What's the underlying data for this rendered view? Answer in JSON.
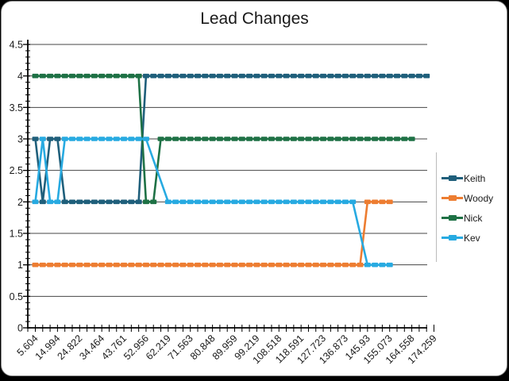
{
  "chart_data": {
    "type": "line",
    "title": "Lead Changes",
    "x_axis": {
      "tick_labels": [
        "5.604",
        "14.994",
        "24.822",
        "34.464",
        "43.761",
        "52.956",
        "62.219",
        "71.563",
        "80.848",
        "89.959",
        "99.219",
        "108.518",
        "118.591",
        "127.723",
        "136.873",
        "145.93",
        "155.073",
        "164.558",
        "174.259"
      ],
      "label_every_n_categories": 3,
      "category_count": 55
    },
    "y_axis": {
      "min": 0,
      "max": 4.5,
      "major_step": 0.5,
      "minor_step": 0.1
    },
    "legend": {
      "position": "right",
      "entries": [
        "Keith",
        "Woody",
        "Nick",
        "Kev"
      ]
    },
    "series": [
      {
        "name": "Keith",
        "color": "#1F5F7B",
        "points": [
          [
            0,
            3
          ],
          [
            1,
            2
          ],
          [
            2,
            3
          ],
          [
            3,
            3
          ],
          [
            4,
            2
          ],
          [
            5,
            2
          ],
          [
            6,
            2
          ],
          [
            7,
            2
          ],
          [
            8,
            2
          ],
          [
            9,
            2
          ],
          [
            10,
            2
          ],
          [
            11,
            2
          ],
          [
            12,
            2
          ],
          [
            13,
            2
          ],
          [
            14,
            2
          ],
          [
            15,
            4
          ],
          [
            16,
            4
          ],
          [
            17,
            4
          ],
          [
            18,
            4
          ],
          [
            19,
            4
          ],
          [
            20,
            4
          ],
          [
            21,
            4
          ],
          [
            22,
            4
          ],
          [
            23,
            4
          ],
          [
            24,
            4
          ],
          [
            25,
            4
          ],
          [
            26,
            4
          ],
          [
            27,
            4
          ],
          [
            28,
            4
          ],
          [
            29,
            4
          ],
          [
            30,
            4
          ],
          [
            31,
            4
          ],
          [
            32,
            4
          ],
          [
            33,
            4
          ],
          [
            34,
            4
          ],
          [
            35,
            4
          ],
          [
            36,
            4
          ],
          [
            37,
            4
          ],
          [
            38,
            4
          ],
          [
            39,
            4
          ],
          [
            40,
            4
          ],
          [
            41,
            4
          ],
          [
            42,
            4
          ],
          [
            43,
            4
          ],
          [
            44,
            4
          ],
          [
            45,
            4
          ],
          [
            46,
            4
          ],
          [
            47,
            4
          ],
          [
            48,
            4
          ],
          [
            49,
            4
          ],
          [
            50,
            4
          ],
          [
            51,
            4
          ],
          [
            52,
            4
          ],
          [
            53,
            4
          ]
        ]
      },
      {
        "name": "Woody",
        "color": "#ED7D31",
        "points": [
          [
            0,
            1
          ],
          [
            1,
            1
          ],
          [
            2,
            1
          ],
          [
            3,
            1
          ],
          [
            4,
            1
          ],
          [
            5,
            1
          ],
          [
            6,
            1
          ],
          [
            7,
            1
          ],
          [
            8,
            1
          ],
          [
            9,
            1
          ],
          [
            10,
            1
          ],
          [
            11,
            1
          ],
          [
            12,
            1
          ],
          [
            13,
            1
          ],
          [
            14,
            1
          ],
          [
            15,
            1
          ],
          [
            16,
            1
          ],
          [
            17,
            1
          ],
          [
            18,
            1
          ],
          [
            19,
            1
          ],
          [
            20,
            1
          ],
          [
            21,
            1
          ],
          [
            22,
            1
          ],
          [
            23,
            1
          ],
          [
            24,
            1
          ],
          [
            25,
            1
          ],
          [
            26,
            1
          ],
          [
            27,
            1
          ],
          [
            28,
            1
          ],
          [
            29,
            1
          ],
          [
            30,
            1
          ],
          [
            31,
            1
          ],
          [
            32,
            1
          ],
          [
            33,
            1
          ],
          [
            34,
            1
          ],
          [
            35,
            1
          ],
          [
            36,
            1
          ],
          [
            37,
            1
          ],
          [
            38,
            1
          ],
          [
            39,
            1
          ],
          [
            40,
            1
          ],
          [
            41,
            1
          ],
          [
            42,
            1
          ],
          [
            43,
            1
          ],
          [
            44,
            1
          ],
          [
            45,
            2
          ],
          [
            46,
            2
          ],
          [
            47,
            2
          ],
          [
            48,
            2
          ]
        ]
      },
      {
        "name": "Nick",
        "color": "#1E7145",
        "points": [
          [
            0,
            4
          ],
          [
            1,
            4
          ],
          [
            2,
            4
          ],
          [
            3,
            4
          ],
          [
            4,
            4
          ],
          [
            5,
            4
          ],
          [
            6,
            4
          ],
          [
            7,
            4
          ],
          [
            8,
            4
          ],
          [
            9,
            4
          ],
          [
            10,
            4
          ],
          [
            11,
            4
          ],
          [
            12,
            4
          ],
          [
            13,
            4
          ],
          [
            14,
            4
          ],
          [
            15,
            2
          ],
          [
            16,
            2
          ],
          [
            17,
            3
          ],
          [
            18,
            3
          ],
          [
            19,
            3
          ],
          [
            20,
            3
          ],
          [
            21,
            3
          ],
          [
            22,
            3
          ],
          [
            23,
            3
          ],
          [
            24,
            3
          ],
          [
            25,
            3
          ],
          [
            26,
            3
          ],
          [
            27,
            3
          ],
          [
            28,
            3
          ],
          [
            29,
            3
          ],
          [
            30,
            3
          ],
          [
            31,
            3
          ],
          [
            32,
            3
          ],
          [
            33,
            3
          ],
          [
            34,
            3
          ],
          [
            35,
            3
          ],
          [
            36,
            3
          ],
          [
            37,
            3
          ],
          [
            38,
            3
          ],
          [
            39,
            3
          ],
          [
            40,
            3
          ],
          [
            41,
            3
          ],
          [
            42,
            3
          ],
          [
            43,
            3
          ],
          [
            44,
            3
          ],
          [
            45,
            3
          ],
          [
            46,
            3
          ],
          [
            47,
            3
          ],
          [
            48,
            3
          ],
          [
            49,
            3
          ],
          [
            50,
            3
          ],
          [
            51,
            3
          ]
        ]
      },
      {
        "name": "Kev",
        "color": "#27AAE1",
        "points": [
          [
            0,
            2
          ],
          [
            1,
            3
          ],
          [
            2,
            2
          ],
          [
            3,
            2
          ],
          [
            4,
            3
          ],
          [
            5,
            3
          ],
          [
            6,
            3
          ],
          [
            7,
            3
          ],
          [
            8,
            3
          ],
          [
            9,
            3
          ],
          [
            10,
            3
          ],
          [
            11,
            3
          ],
          [
            12,
            3
          ],
          [
            13,
            3
          ],
          [
            14,
            3
          ],
          [
            15,
            3
          ],
          [
            18,
            2
          ],
          [
            19,
            2
          ],
          [
            20,
            2
          ],
          [
            21,
            2
          ],
          [
            22,
            2
          ],
          [
            23,
            2
          ],
          [
            24,
            2
          ],
          [
            25,
            2
          ],
          [
            26,
            2
          ],
          [
            27,
            2
          ],
          [
            28,
            2
          ],
          [
            29,
            2
          ],
          [
            30,
            2
          ],
          [
            31,
            2
          ],
          [
            32,
            2
          ],
          [
            33,
            2
          ],
          [
            34,
            2
          ],
          [
            35,
            2
          ],
          [
            36,
            2
          ],
          [
            37,
            2
          ],
          [
            38,
            2
          ],
          [
            39,
            2
          ],
          [
            40,
            2
          ],
          [
            41,
            2
          ],
          [
            42,
            2
          ],
          [
            43,
            2
          ],
          [
            45,
            1
          ],
          [
            46,
            1
          ],
          [
            47,
            1
          ],
          [
            48,
            1
          ]
        ]
      }
    ]
  }
}
